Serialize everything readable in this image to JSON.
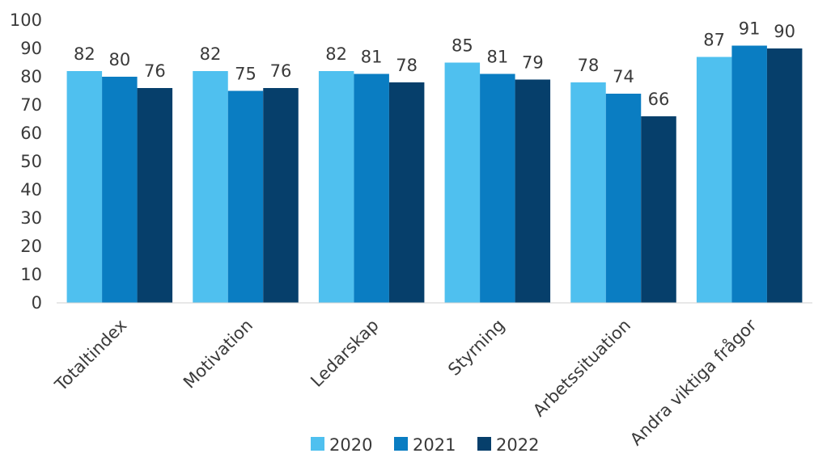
{
  "chart_data": {
    "type": "bar",
    "title": "",
    "xlabel": "",
    "ylabel": "",
    "ylim": [
      0,
      100
    ],
    "yticks": [
      0,
      10,
      20,
      30,
      40,
      50,
      60,
      70,
      80,
      90,
      100
    ],
    "grid": false,
    "legend_position": "bottom",
    "categories": [
      "Totaltindex",
      "Motivation",
      "Ledarskap",
      "Styrning",
      "Arbetssituation",
      "Andra viktiga frågor"
    ],
    "series": [
      {
        "name": "2020",
        "color": "#4fc0ef",
        "values": [
          82,
          82,
          82,
          85,
          78,
          87
        ]
      },
      {
        "name": "2021",
        "color": "#0a7dc2",
        "values": [
          80,
          75,
          81,
          81,
          74,
          91
        ]
      },
      {
        "name": "2022",
        "color": "#063f6b",
        "values": [
          76,
          76,
          78,
          79,
          66,
          90
        ]
      }
    ]
  }
}
